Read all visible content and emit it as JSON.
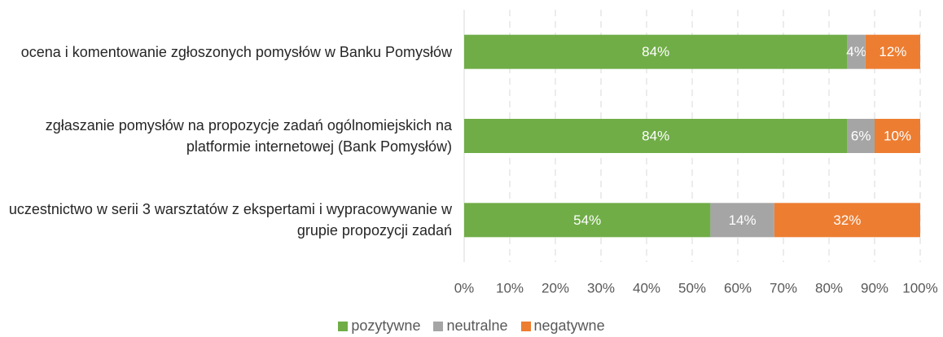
{
  "chart_data": {
    "type": "stacked_bar_horizontal",
    "categories": [
      "ocena i komentowanie zgłoszonych pomysłów w Banku Pomysłów",
      "zgłaszanie pomysłów na propozycje zadań ogólnomiejskich na platformie internetowej (Bank Pomysłów)",
      "uczestnictwo w serii 3 warsztatów z ekspertami i wypracowywanie w grupie propozycji zadań"
    ],
    "series": [
      {
        "name": "pozytywne",
        "color": "#70ad47",
        "values": [
          84,
          84,
          54
        ],
        "value_labels": [
          "84%",
          "84%",
          "54%"
        ]
      },
      {
        "name": "neutralne",
        "color": "#a5a5a5",
        "values": [
          4,
          6,
          14
        ],
        "value_labels": [
          "4%",
          "6%",
          "14%"
        ]
      },
      {
        "name": "negatywne",
        "color": "#ed7d31",
        "values": [
          12,
          10,
          32
        ],
        "value_labels": [
          "12%",
          "10%",
          "32%"
        ]
      }
    ],
    "xlim": [
      0,
      100
    ],
    "xticks": [
      {
        "value": 0,
        "label": "0%"
      },
      {
        "value": 10,
        "label": "10%"
      },
      {
        "value": 20,
        "label": "20%"
      },
      {
        "value": 30,
        "label": "30%"
      },
      {
        "value": 40,
        "label": "40%"
      },
      {
        "value": 50,
        "label": "50%"
      },
      {
        "value": 60,
        "label": "60%"
      },
      {
        "value": 70,
        "label": "70%"
      },
      {
        "value": 80,
        "label": "80%"
      },
      {
        "value": 90,
        "label": "90%"
      },
      {
        "value": 100,
        "label": "100%"
      }
    ],
    "grid": true,
    "legend": "bottom"
  }
}
